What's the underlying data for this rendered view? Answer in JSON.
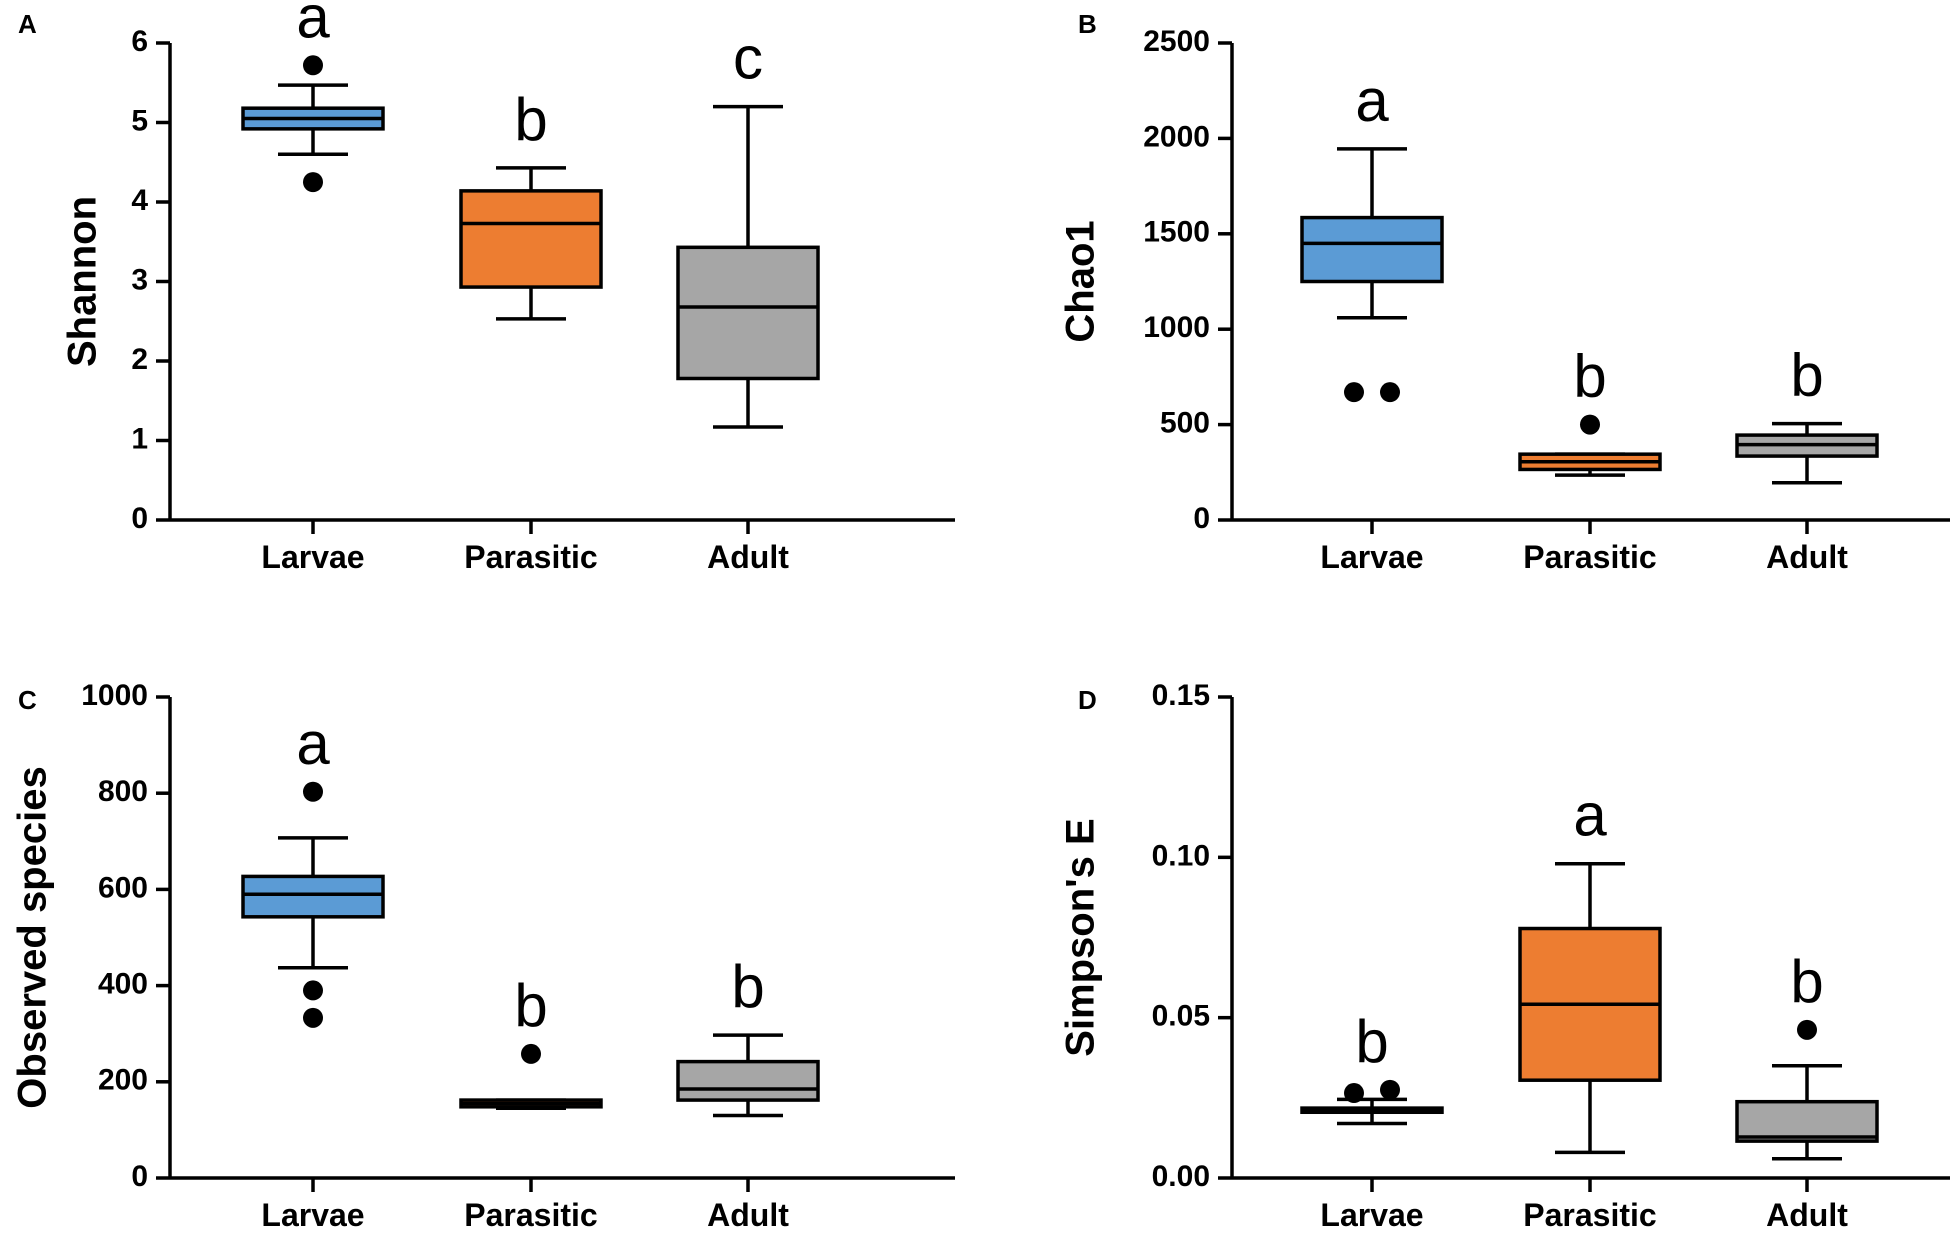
{
  "chart_data": [
    {
      "panel": "A",
      "type": "box",
      "ylabel": "Shannon",
      "ylim": [
        0,
        6
      ],
      "yticks": [
        0,
        1,
        2,
        3,
        4,
        5,
        6
      ],
      "categories": [
        "Larvae",
        "Parasitic",
        "Adult"
      ],
      "boxes": [
        {
          "name": "Larvae",
          "color": "#5b9bd5",
          "whisker_low": 4.6,
          "q1": 4.92,
          "median": 5.05,
          "q3": 5.18,
          "whisker_high": 5.47,
          "outliers": [
            5.72,
            4.25
          ],
          "letter": "a"
        },
        {
          "name": "Parasitic",
          "color": "#ed7d31",
          "whisker_low": 2.53,
          "q1": 2.93,
          "median": 3.73,
          "q3": 4.14,
          "whisker_high": 4.43,
          "outliers": [],
          "letter": "b"
        },
        {
          "name": "Adult",
          "color": "#a6a6a6",
          "whisker_low": 1.17,
          "q1": 1.78,
          "median": 2.68,
          "q3": 3.43,
          "whisker_high": 5.2,
          "outliers": [],
          "letter": "c"
        }
      ]
    },
    {
      "panel": "B",
      "type": "box",
      "ylabel": "Chao1",
      "ylim": [
        0,
        2500
      ],
      "yticks": [
        0,
        500,
        1000,
        1500,
        2000,
        2500
      ],
      "categories": [
        "Larvae",
        "Parasitic",
        "Adult"
      ],
      "boxes": [
        {
          "name": "Larvae",
          "color": "#5b9bd5",
          "whisker_low": 1060,
          "q1": 1250,
          "median": 1450,
          "q3": 1585,
          "whisker_high": 1945,
          "outliers": [
            670,
            670
          ],
          "letter": "a"
        },
        {
          "name": "Parasitic",
          "color": "#ed7d31",
          "whisker_low": 235,
          "q1": 265,
          "median": 305,
          "q3": 345,
          "whisker_high": 345,
          "outliers": [
            500
          ],
          "letter": "b"
        },
        {
          "name": "Adult",
          "color": "#a6a6a6",
          "whisker_low": 195,
          "q1": 335,
          "median": 395,
          "q3": 445,
          "whisker_high": 505,
          "outliers": [],
          "letter": "b"
        }
      ]
    },
    {
      "panel": "C",
      "type": "box",
      "ylabel": "Observed species",
      "ylim": [
        0,
        1000
      ],
      "yticks": [
        0,
        200,
        400,
        600,
        800,
        1000
      ],
      "categories": [
        "Larvae",
        "Parasitic",
        "Adult"
      ],
      "boxes": [
        {
          "name": "Larvae",
          "color": "#5b9bd5",
          "whisker_low": 437,
          "q1": 543,
          "median": 590,
          "q3": 627,
          "whisker_high": 707,
          "outliers": [
            803,
            390,
            333
          ],
          "letter": "a"
        },
        {
          "name": "Parasitic",
          "color": "#ed7d31",
          "whisker_low": 145,
          "q1": 148,
          "median": 155,
          "q3": 162,
          "whisker_high": 162,
          "outliers": [
            258
          ],
          "letter": "b"
        },
        {
          "name": "Adult",
          "color": "#a6a6a6",
          "whisker_low": 130,
          "q1": 162,
          "median": 185,
          "q3": 242,
          "whisker_high": 297,
          "outliers": [],
          "letter": "b"
        }
      ]
    },
    {
      "panel": "D",
      "type": "box",
      "ylabel": "Simpson's E",
      "ylim": [
        0,
        0.15
      ],
      "yticks": [
        0,
        0.05,
        0.1,
        0.15
      ],
      "ytick_labels": [
        "0.00",
        "0.05",
        "0.10",
        "0.15"
      ],
      "categories": [
        "Larvae",
        "Parasitic",
        "Adult"
      ],
      "boxes": [
        {
          "name": "Larvae",
          "color": "#5b9bd5",
          "whisker_low": 0.017,
          "q1": 0.0205,
          "median": 0.0212,
          "q3": 0.0218,
          "whisker_high": 0.0245,
          "outliers": [
            0.0265,
            0.0275
          ],
          "letter": "b"
        },
        {
          "name": "Parasitic",
          "color": "#ed7d31",
          "whisker_low": 0.008,
          "q1": 0.0305,
          "median": 0.0542,
          "q3": 0.0778,
          "whisker_high": 0.098,
          "outliers": [],
          "letter": "a"
        },
        {
          "name": "Adult",
          "color": "#a6a6a6",
          "whisker_low": 0.006,
          "q1": 0.0115,
          "median": 0.0128,
          "q3": 0.0238,
          "whisker_high": 0.035,
          "outliers": [
            0.0462
          ],
          "letter": "b"
        }
      ]
    }
  ]
}
